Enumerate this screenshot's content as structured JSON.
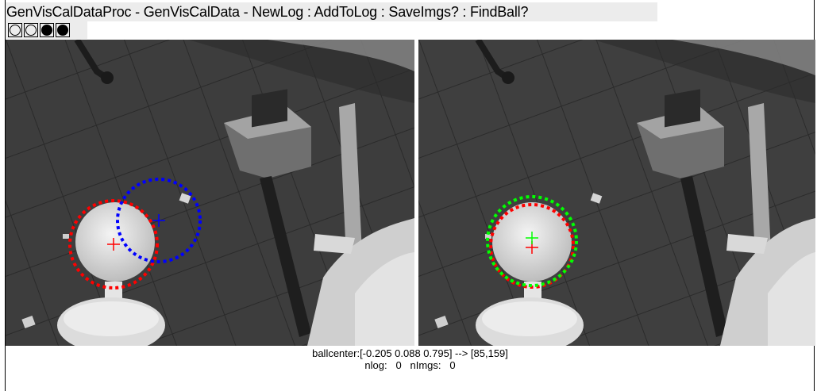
{
  "window": {
    "title": "GenVisCalDataProc - GenVisCalData - NewLog : AddToLog : SaveImgs? : FindBall?"
  },
  "toolbar": {
    "buttons": [
      {
        "icon": "open-circle-icon"
      },
      {
        "icon": "open-circle-icon"
      },
      {
        "icon": "filled-circle-icon"
      },
      {
        "icon": "filled-circle-icon"
      }
    ]
  },
  "status": {
    "ballcenter": "ballcenter:[-0.205 0.088 0.795] --> [85,159]",
    "nlog_label": "nlog:",
    "nlog_value": "0",
    "nimgs_label": "nImgs:",
    "nimgs_value": "0"
  },
  "colors": {
    "detected_circle": "#ff0000",
    "projected_circle": "#0000ff",
    "fitted_circle": "#00ff00"
  }
}
